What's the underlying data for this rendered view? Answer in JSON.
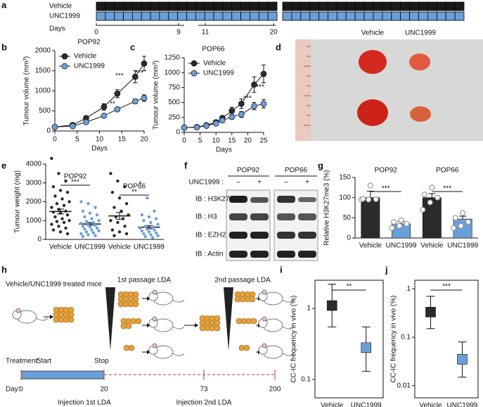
{
  "panel_labels": [
    "a",
    "b",
    "c",
    "d",
    "e",
    "f",
    "g",
    "h",
    "i",
    "j"
  ],
  "schedule": {
    "rows": [
      "Vehicle",
      "UNC1999"
    ],
    "axis_label": "Days",
    "ticks": [
      0,
      9,
      11,
      20
    ]
  },
  "photo": {
    "labels": [
      "Vehicle",
      "UNC1999"
    ]
  },
  "blot": {
    "groups": [
      "POP92",
      "POP66"
    ],
    "treatment_label": "UNC1999 :",
    "signs": [
      "–",
      "+",
      "–",
      "+"
    ],
    "rows": [
      "IB : H3K27me3",
      "IB : H3",
      "IB : EZH2",
      "IB : Actin"
    ]
  },
  "schematic": {
    "title": "Vehicle/UNC1999 treated mice",
    "passage1": "1st passage LDA",
    "passage2": "2nd passage LDA",
    "treatment_label": "Treatment:",
    "start": "Start",
    "stop": "Stop",
    "day_label": "Day:",
    "day_ticks": [
      0,
      20,
      73,
      200
    ],
    "injection1": "Injection 1st LDA",
    "injection2": "Injection 2nd LDA"
  },
  "chart_data": [
    {
      "type": "line",
      "title": "POP92",
      "xlabel": "Days",
      "ylabel": "Tumour volume (mm³)",
      "x": [
        0,
        4,
        7,
        11,
        14,
        18,
        20
      ],
      "xlim": [
        0,
        20
      ],
      "xticks": [
        0,
        5,
        10,
        15,
        20
      ],
      "ylim": [
        0,
        2000
      ],
      "yticks": [
        0,
        500,
        1000,
        1500,
        2000
      ],
      "series": [
        {
          "name": "Vehicle",
          "color": "#2b2b2b",
          "values": [
            100,
            150,
            320,
            600,
            930,
            1350,
            1680
          ],
          "errors": [
            20,
            30,
            50,
            80,
            100,
            150,
            180
          ]
        },
        {
          "name": "UNC1999",
          "color": "#6b9fd8",
          "values": [
            100,
            120,
            220,
            380,
            540,
            740,
            820
          ],
          "errors": [
            10,
            20,
            30,
            40,
            50,
            60,
            80
          ]
        }
      ],
      "annotations": [
        "**",
        "***",
        "***"
      ]
    },
    {
      "type": "line",
      "title": "POP66",
      "xlabel": "Days",
      "ylabel": "Tumour volume (mm³)",
      "x": [
        0,
        4,
        7,
        10,
        12,
        15,
        18,
        22,
        25
      ],
      "xlim": [
        0,
        25
      ],
      "xticks": [
        0,
        5,
        10,
        15,
        20,
        25
      ],
      "ylim": [
        0,
        1250
      ],
      "yticks": [
        0,
        250,
        500,
        750,
        1000,
        1250
      ],
      "series": [
        {
          "name": "Vehicle",
          "color": "#2b2b2b",
          "values": [
            80,
            90,
            120,
            170,
            240,
            360,
            480,
            800,
            980
          ],
          "errors": [
            10,
            10,
            20,
            30,
            40,
            60,
            80,
            130,
            150
          ]
        },
        {
          "name": "UNC1999",
          "color": "#6b9fd8",
          "values": [
            80,
            85,
            110,
            150,
            200,
            260,
            300,
            440,
            480
          ],
          "errors": [
            10,
            10,
            15,
            20,
            30,
            40,
            50,
            60,
            70
          ]
        }
      ],
      "annotations": [
        "***",
        "***"
      ]
    },
    {
      "type": "bar",
      "ylabel": "Tumour weight (mg)",
      "categories": [
        "Vehicle",
        "UNC1999",
        "Vehicle",
        "UNC1999"
      ],
      "groups": [
        "POP92",
        "POP66"
      ],
      "ylim": [
        0,
        4000
      ],
      "yticks": [
        0,
        1000,
        2000,
        3000,
        4000
      ],
      "values": [
        1480,
        820,
        1250,
        650
      ],
      "errors": [
        130,
        80,
        180,
        90
      ],
      "point_colors": [
        "#2b2b2b",
        "#6b9fd8",
        "#2b2b2b",
        "#6b9fd8"
      ],
      "points": [
        [
          4300,
          3500,
          3100,
          2800,
          2600,
          2500,
          2300,
          2150,
          2000,
          1900,
          1800,
          1700,
          1600,
          1500,
          1450,
          1400,
          1300,
          1200,
          1100,
          1000,
          950,
          900,
          800,
          700,
          600,
          500,
          400,
          300
        ],
        [
          2000,
          1900,
          1700,
          1500,
          1400,
          1300,
          1200,
          1100,
          1000,
          950,
          900,
          850,
          800,
          750,
          700,
          650,
          600,
          550,
          500,
          450,
          400,
          350,
          300,
          250,
          200,
          150
        ],
        [
          3500,
          3100,
          2800,
          2500,
          2200,
          1900,
          1700,
          1500,
          1300,
          1200,
          1100,
          1000,
          900,
          700,
          500,
          400,
          300,
          200
        ],
        [
          3000,
          2200,
          1500,
          1300,
          1200,
          1100,
          1000,
          900,
          800,
          700,
          650,
          600,
          550,
          500,
          450,
          400,
          350,
          300,
          250,
          200,
          150,
          100
        ]
      ],
      "significance": [
        "***",
        "**"
      ]
    },
    {
      "type": "bar",
      "ylabel": "Relative H3K27me3 (%)",
      "categories": [
        "Vehicle",
        "UNC1999",
        "Vehicle",
        "UNC1999"
      ],
      "groups": [
        "POP92",
        "POP66"
      ],
      "ylim": [
        0,
        150
      ],
      "yticks": [
        0,
        50,
        100,
        150
      ],
      "values": [
        100,
        35,
        100,
        47
      ],
      "errors": [
        16,
        6,
        10,
        7
      ],
      "bar_colors": [
        "#2b2b2b",
        "#6b9fd8",
        "#2b2b2b",
        "#6b9fd8"
      ],
      "point_color": "#ffffff",
      "points": [
        [
          95,
          95,
          96,
          97,
          130
        ],
        [
          25,
          30,
          35,
          40,
          44
        ],
        [
          70,
          88,
          100,
          108,
          125
        ],
        [
          25,
          30,
          40,
          50,
          62
        ]
      ],
      "significance": [
        "***",
        "***"
      ]
    },
    {
      "type": "interval",
      "log": true,
      "ylabel": "CC-IC frequency in vivo (%)",
      "categories": [
        "Vehicle",
        "UNC1999"
      ],
      "ylim": [
        0.055,
        2.5
      ],
      "yticks": [
        0.1,
        1
      ],
      "values": [
        1.1,
        0.28
      ],
      "ci_low": [
        0.55,
        0.13
      ],
      "ci_high": [
        2.2,
        0.55
      ],
      "colors": [
        "#2b2b2b",
        "#6b9fd8"
      ],
      "significance": "**"
    },
    {
      "type": "interval",
      "log": true,
      "ylabel": "CC-IC frequency in vivo (%)",
      "categories": [
        "Vehicle",
        "UNC1999"
      ],
      "ylim": [
        0.0056,
        1.5
      ],
      "yticks": [
        0.01,
        0.1,
        1
      ],
      "values": [
        0.33,
        0.035
      ],
      "ci_low": [
        0.15,
        0.015
      ],
      "ci_high": [
        0.7,
        0.08
      ],
      "colors": [
        "#2b2b2b",
        "#6b9fd8"
      ],
      "significance": "***"
    }
  ]
}
